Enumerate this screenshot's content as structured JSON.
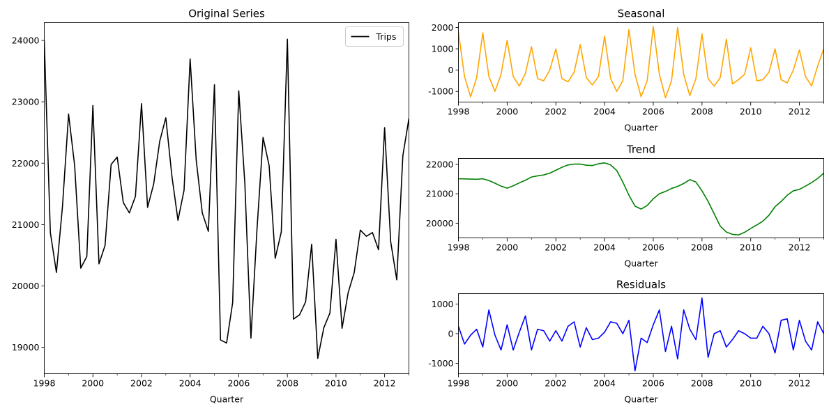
{
  "chart_data": [
    {
      "id": "original",
      "type": "line",
      "title": "Original Series",
      "xlabel": "Quarter",
      "ylabel": "",
      "xlim": [
        1998.0,
        2013.0
      ],
      "ylim": [
        18570,
        24290
      ],
      "xticks": [
        1998,
        2000,
        2002,
        2004,
        2006,
        2008,
        2010,
        2012
      ],
      "yticks": [
        19000,
        20000,
        21000,
        22000,
        23000,
        24000
      ],
      "legend": {
        "position": "top-right",
        "entries": [
          "Trips"
        ]
      },
      "grid": false,
      "series": [
        {
          "name": "Trips",
          "color": "#000000",
          "x_start": 1998.0,
          "x_step": 0.25,
          "values": [
            24000,
            20870,
            20220,
            21300,
            22800,
            21960,
            20290,
            20480,
            22940,
            20360,
            20660,
            21980,
            22100,
            21360,
            21190,
            21460,
            22970,
            21280,
            21660,
            22360,
            22740,
            21790,
            21070,
            21560,
            23700,
            22050,
            21190,
            20890,
            23280,
            19120,
            19070,
            19730,
            23180,
            21680,
            19150,
            20920,
            22420,
            21960,
            20450,
            20880,
            24020,
            19460,
            19530,
            19740,
            20680,
            18820,
            19320,
            19560,
            20760,
            19310,
            19890,
            20220,
            20910,
            20810,
            20870,
            20590,
            22580,
            20720,
            20100,
            22120,
            22730
          ]
        }
      ]
    },
    {
      "id": "seasonal",
      "type": "line",
      "title": "Seasonal",
      "xlabel": "Quarter",
      "ylabel": "",
      "xlim": [
        1998.0,
        2013.0
      ],
      "ylim": [
        -1500,
        2230
      ],
      "xticks": [
        1998,
        2000,
        2002,
        2004,
        2006,
        2008,
        2010,
        2012
      ],
      "yticks": [
        -1000,
        0,
        1000,
        2000
      ],
      "grid": false,
      "series": [
        {
          "color": "#FFA500",
          "x_start": 1998.0,
          "x_step": 0.25,
          "values": [
            1800,
            -300,
            -1250,
            -350,
            1750,
            -300,
            -1000,
            -200,
            1400,
            -300,
            -750,
            -150,
            1100,
            -400,
            -500,
            0,
            1000,
            -400,
            -550,
            -100,
            1200,
            -350,
            -700,
            -300,
            1600,
            -400,
            -1000,
            -500,
            1900,
            -200,
            -1250,
            -500,
            2050,
            -200,
            -1300,
            -500,
            2000,
            -200,
            -1200,
            -400,
            1700,
            -400,
            -750,
            -350,
            1450,
            -650,
            -450,
            -200,
            1050,
            -500,
            -450,
            -100,
            1000,
            -450,
            -600,
            0,
            950,
            -300,
            -750,
            200,
            1000
          ]
        }
      ]
    },
    {
      "id": "trend",
      "type": "line",
      "title": "Trend",
      "xlabel": "Quarter",
      "ylabel": "",
      "xlim": [
        1998.0,
        2013.0
      ],
      "ylim": [
        19500,
        22200
      ],
      "xticks": [
        1998,
        2000,
        2002,
        2004,
        2006,
        2008,
        2010,
        2012
      ],
      "yticks": [
        20000,
        21000,
        22000
      ],
      "grid": false,
      "series": [
        {
          "color": "#008000",
          "x_start": 1998.0,
          "x_step": 0.25,
          "values": [
            21510,
            21505,
            21500,
            21495,
            21510,
            21450,
            21360,
            21260,
            21190,
            21270,
            21370,
            21460,
            21570,
            21610,
            21640,
            21700,
            21800,
            21900,
            21980,
            22010,
            22010,
            21970,
            21960,
            22020,
            22050,
            21980,
            21790,
            21400,
            20950,
            20580,
            20480,
            20600,
            20830,
            21000,
            21080,
            21180,
            21250,
            21350,
            21480,
            21400,
            21100,
            20740,
            20320,
            19900,
            19700,
            19620,
            19600,
            19690,
            19820,
            19940,
            20070,
            20270,
            20560,
            20740,
            20950,
            21100,
            21150,
            21260,
            21380,
            21520,
            21700
          ]
        }
      ]
    },
    {
      "id": "residuals",
      "type": "line",
      "title": "Residuals",
      "xlabel": "Quarter",
      "ylabel": "",
      "xlim": [
        1998.0,
        2013.0
      ],
      "ylim": [
        -1350,
        1350
      ],
      "xticks": [
        1998,
        2000,
        2002,
        2004,
        2006,
        2008,
        2010,
        2012
      ],
      "yticks": [
        -1000,
        0,
        1000
      ],
      "grid": false,
      "series": [
        {
          "color": "#0000FF",
          "x_start": 1998.0,
          "x_step": 0.25,
          "values": [
            250,
            -350,
            -50,
            150,
            -450,
            800,
            -50,
            -550,
            300,
            -550,
            50,
            600,
            -550,
            150,
            100,
            -250,
            100,
            -250,
            250,
            400,
            -450,
            200,
            -200,
            -150,
            50,
            400,
            350,
            0,
            450,
            -1250,
            -150,
            -300,
            300,
            800,
            -600,
            250,
            -850,
            800,
            150,
            -200,
            1200,
            -800,
            0,
            100,
            -450,
            -200,
            100,
            0,
            -150,
            -150,
            250,
            0,
            -650,
            450,
            500,
            -550,
            450,
            -250,
            -550,
            400,
            0
          ]
        }
      ]
    }
  ]
}
